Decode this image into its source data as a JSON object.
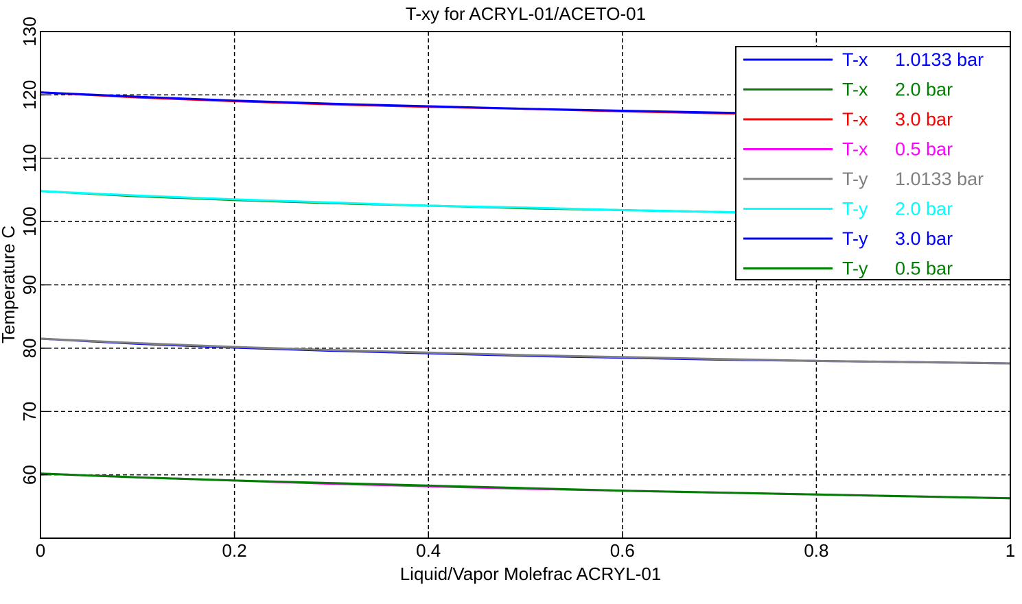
{
  "chart_data": {
    "type": "line",
    "title": "T-xy for ACRYL-01/ACETO-01",
    "xlabel": "Liquid/Vapor Molefrac ACRYL-01",
    "ylabel": "Temperature  C",
    "xlim": [
      0,
      1
    ],
    "ylim": [
      50,
      130
    ],
    "xticks": [
      0,
      0.2,
      0.4,
      0.6,
      0.8,
      1
    ],
    "xtick_labels": [
      "0",
      "0.2",
      "0.4",
      "0.6",
      "0.8",
      "1"
    ],
    "yticks": [
      60,
      70,
      80,
      90,
      100,
      110,
      120,
      130
    ],
    "ytick_labels": [
      "60",
      "70",
      "80",
      "90",
      "100",
      "110",
      "120",
      "130"
    ],
    "grid": true,
    "legend_position": "top-right",
    "x": [
      0,
      0.1,
      0.2,
      0.3,
      0.4,
      0.5,
      0.6,
      0.7,
      0.8,
      0.9,
      1.0
    ],
    "series": [
      {
        "name": "T-x",
        "pressure": "1.0133 bar",
        "color": "#0000ff",
        "values": [
          81.5,
          80.7,
          80.1,
          79.6,
          79.2,
          78.8,
          78.5,
          78.2,
          78.0,
          77.8,
          77.6
        ]
      },
      {
        "name": "T-x",
        "pressure": "2.0 bar",
        "color": "#008000",
        "values": [
          104.8,
          104.0,
          103.4,
          102.9,
          102.5,
          102.1,
          101.8,
          101.5,
          101.2,
          101.0,
          100.8
        ]
      },
      {
        "name": "T-x",
        "pressure": "3.0 bar",
        "color": "#ff0000",
        "values": [
          120.4,
          119.6,
          119.0,
          118.5,
          118.1,
          117.8,
          117.4,
          117.1,
          116.9,
          116.6,
          116.4
        ]
      },
      {
        "name": "T-x",
        "pressure": "0.5 bar",
        "color": "#ff00ff",
        "values": [
          60.2,
          59.6,
          59.1,
          58.6,
          58.2,
          57.8,
          57.5,
          57.2,
          56.9,
          56.6,
          56.3
        ]
      },
      {
        "name": "T-y",
        "pressure": "1.0133 bar",
        "color": "#808080",
        "values": [
          81.5,
          80.8,
          80.2,
          79.7,
          79.3,
          78.9,
          78.6,
          78.3,
          78.0,
          77.8,
          77.6
        ]
      },
      {
        "name": "T-y",
        "pressure": "2.0 bar",
        "color": "#00ffff",
        "values": [
          104.8,
          104.1,
          103.5,
          103.0,
          102.5,
          102.2,
          101.8,
          101.5,
          101.3,
          101.0,
          100.8
        ]
      },
      {
        "name": "T-y",
        "pressure": "3.0 bar",
        "color": "#0000ff",
        "values": [
          120.4,
          119.7,
          119.1,
          118.6,
          118.2,
          117.8,
          117.5,
          117.2,
          116.9,
          116.6,
          116.4
        ]
      },
      {
        "name": "T-y",
        "pressure": "0.5 bar",
        "color": "#008000",
        "values": [
          60.2,
          59.6,
          59.1,
          58.7,
          58.3,
          57.9,
          57.5,
          57.2,
          56.9,
          56.6,
          56.3
        ]
      }
    ]
  }
}
